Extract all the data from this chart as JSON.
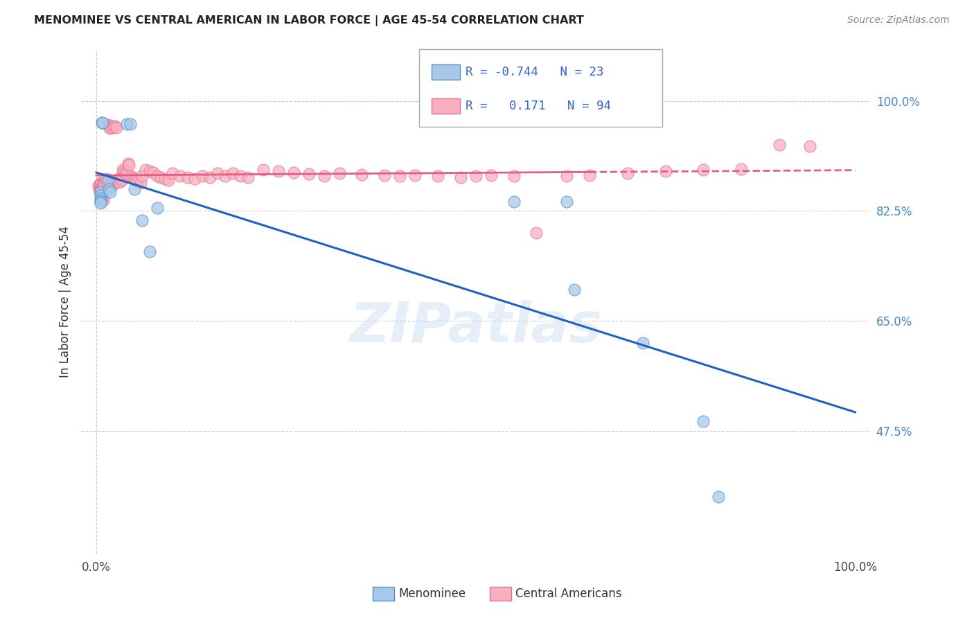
{
  "title": "MENOMINEE VS CENTRAL AMERICAN IN LABOR FORCE | AGE 45-54 CORRELATION CHART",
  "source": "Source: ZipAtlas.com",
  "ylabel": "In Labor Force | Age 45-54",
  "ytick_labels": [
    "100.0%",
    "82.5%",
    "65.0%",
    "47.5%"
  ],
  "ytick_values": [
    1.0,
    0.825,
    0.65,
    0.475
  ],
  "xlim": [
    -0.02,
    1.02
  ],
  "ylim": [
    0.28,
    1.08
  ],
  "menominee_color": "#a8c8e8",
  "central_color": "#f8b0c0",
  "menominee_edge_color": "#5090d0",
  "central_edge_color": "#e87090",
  "menominee_line_color": "#2060c0",
  "central_line_color": "#e06080",
  "legend_text_color": "#3366cc",
  "menominee_R": -0.744,
  "menominee_N": 23,
  "central_R": 0.171,
  "central_N": 94,
  "menominee_x": [
    0.005,
    0.005,
    0.005,
    0.005,
    0.005,
    0.005,
    0.007,
    0.008,
    0.015,
    0.016,
    0.018,
    0.04,
    0.045,
    0.05,
    0.06,
    0.07,
    0.08,
    0.55,
    0.62,
    0.63,
    0.72,
    0.8,
    0.82
  ],
  "menominee_y": [
    0.855,
    0.85,
    0.845,
    0.842,
    0.84,
    0.838,
    0.965,
    0.965,
    0.875,
    0.86,
    0.855,
    0.963,
    0.963,
    0.86,
    0.81,
    0.76,
    0.83,
    0.84,
    0.84,
    0.7,
    0.615,
    0.49,
    0.37
  ],
  "central_x": [
    0.003,
    0.004,
    0.005,
    0.005,
    0.005,
    0.005,
    0.005,
    0.005,
    0.005,
    0.005,
    0.006,
    0.007,
    0.008,
    0.008,
    0.009,
    0.009,
    0.01,
    0.01,
    0.01,
    0.012,
    0.014,
    0.015,
    0.016,
    0.017,
    0.018,
    0.019,
    0.02,
    0.021,
    0.022,
    0.023,
    0.024,
    0.025,
    0.026,
    0.027,
    0.028,
    0.03,
    0.032,
    0.033,
    0.034,
    0.035,
    0.036,
    0.038,
    0.04,
    0.042,
    0.043,
    0.045,
    0.048,
    0.05,
    0.052,
    0.055,
    0.058,
    0.06,
    0.065,
    0.07,
    0.075,
    0.08,
    0.085,
    0.09,
    0.095,
    0.1,
    0.11,
    0.12,
    0.13,
    0.14,
    0.15,
    0.16,
    0.17,
    0.18,
    0.19,
    0.2,
    0.22,
    0.24,
    0.26,
    0.28,
    0.3,
    0.32,
    0.35,
    0.38,
    0.4,
    0.42,
    0.45,
    0.48,
    0.5,
    0.52,
    0.55,
    0.58,
    0.62,
    0.65,
    0.7,
    0.75,
    0.8,
    0.85,
    0.9,
    0.94
  ],
  "central_y": [
    0.865,
    0.86,
    0.87,
    0.868,
    0.866,
    0.862,
    0.86,
    0.858,
    0.856,
    0.854,
    0.852,
    0.85,
    0.848,
    0.846,
    0.844,
    0.842,
    0.87,
    0.868,
    0.866,
    0.876,
    0.872,
    0.962,
    0.96,
    0.958,
    0.956,
    0.87,
    0.865,
    0.96,
    0.958,
    0.87,
    0.868,
    0.96,
    0.958,
    0.875,
    0.873,
    0.871,
    0.878,
    0.876,
    0.874,
    0.89,
    0.888,
    0.886,
    0.884,
    0.9,
    0.898,
    0.88,
    0.878,
    0.876,
    0.874,
    0.872,
    0.87,
    0.88,
    0.89,
    0.888,
    0.886,
    0.88,
    0.878,
    0.876,
    0.874,
    0.885,
    0.88,
    0.878,
    0.876,
    0.88,
    0.878,
    0.885,
    0.88,
    0.885,
    0.88,
    0.878,
    0.89,
    0.888,
    0.886,
    0.884,
    0.88,
    0.885,
    0.883,
    0.882,
    0.88,
    0.882,
    0.88,
    0.878,
    0.88,
    0.882,
    0.88,
    0.79,
    0.88,
    0.882,
    0.885,
    0.888,
    0.89,
    0.892,
    0.93,
    0.928
  ],
  "background_color": "#ffffff",
  "grid_color": "#cccccc",
  "watermark": "ZIPatlas"
}
